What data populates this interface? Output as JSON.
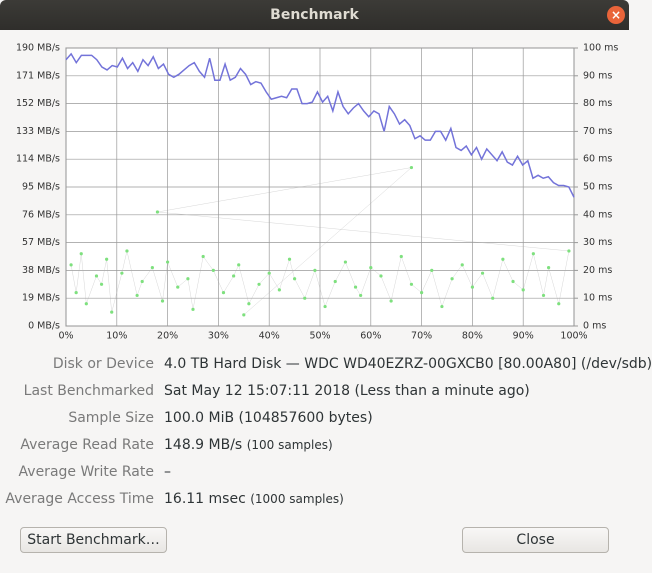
{
  "window": {
    "title": "Benchmark"
  },
  "chart_data": {
    "type": "line",
    "grid": true,
    "xlim": [
      0,
      100
    ],
    "xticks": [
      {
        "value": 0,
        "label": "0%"
      },
      {
        "value": 10,
        "label": "10%"
      },
      {
        "value": 20,
        "label": "20%"
      },
      {
        "value": 30,
        "label": "30%"
      },
      {
        "value": 40,
        "label": "40%"
      },
      {
        "value": 50,
        "label": "50%"
      },
      {
        "value": 60,
        "label": "60%"
      },
      {
        "value": 70,
        "label": "70%"
      },
      {
        "value": 80,
        "label": "80%"
      },
      {
        "value": 90,
        "label": "90%"
      },
      {
        "value": 100,
        "label": "100%"
      }
    ],
    "ylim": [
      0,
      190
    ],
    "yticks": [
      {
        "value": 0,
        "label": "0 MB/s"
      },
      {
        "value": 19,
        "label": "19 MB/s"
      },
      {
        "value": 38,
        "label": "38 MB/s"
      },
      {
        "value": 57,
        "label": "57 MB/s"
      },
      {
        "value": 76,
        "label": "76 MB/s"
      },
      {
        "value": 95,
        "label": "95 MB/s"
      },
      {
        "value": 114,
        "label": "114 MB/s"
      },
      {
        "value": 133,
        "label": "133 MB/s"
      },
      {
        "value": 152,
        "label": "152 MB/s"
      },
      {
        "value": 171,
        "label": "171 MB/s"
      },
      {
        "value": 190,
        "label": "190 MB/s"
      }
    ],
    "y2lim": [
      0,
      100
    ],
    "y2ticks": [
      {
        "value": 0,
        "label": "0 ms"
      },
      {
        "value": 10,
        "label": "10 ms"
      },
      {
        "value": 20,
        "label": "20 ms"
      },
      {
        "value": 30,
        "label": "30 ms"
      },
      {
        "value": 40,
        "label": "40 ms"
      },
      {
        "value": 50,
        "label": "50 ms"
      },
      {
        "value": 60,
        "label": "60 ms"
      },
      {
        "value": 70,
        "label": "70 ms"
      },
      {
        "value": 80,
        "label": "80 ms"
      },
      {
        "value": 90,
        "label": "90 ms"
      },
      {
        "value": 100,
        "label": "100 ms"
      }
    ],
    "series": [
      {
        "type": "line",
        "color": "#7373d9",
        "values": [
          182,
          186,
          180,
          185,
          185,
          185,
          182,
          177,
          175,
          178,
          177,
          183,
          176,
          180,
          174,
          182,
          178,
          184,
          176,
          179,
          172,
          170,
          172,
          175,
          178,
          180,
          174,
          170,
          183,
          168,
          168,
          179,
          168,
          170,
          176,
          172,
          165,
          167,
          166,
          160,
          155,
          156,
          157,
          156,
          162,
          162,
          152,
          152,
          153,
          160,
          153,
          157,
          147,
          160,
          150,
          145,
          149,
          152,
          147,
          143,
          147,
          145,
          133,
          150,
          145,
          138,
          141,
          137,
          128,
          130,
          127,
          127,
          133,
          133,
          127,
          135,
          122,
          120,
          123,
          117,
          122,
          114,
          121,
          117,
          113,
          119,
          112,
          110,
          116,
          110,
          113,
          101,
          103,
          101,
          102,
          98,
          96,
          96,
          95,
          88
        ]
      },
      {
        "type": "scatter",
        "axis": "y2",
        "color": "#7ee07e",
        "x": [
          1,
          2,
          3,
          4,
          6,
          7,
          8,
          9,
          11,
          12,
          14,
          15,
          17,
          19,
          20,
          22,
          24,
          25,
          27,
          29,
          31,
          33,
          34,
          36,
          38,
          40,
          42,
          44,
          45,
          47,
          49,
          51,
          53,
          55,
          57,
          58,
          60,
          62,
          64,
          66,
          68,
          70,
          72,
          74,
          76,
          78,
          80,
          82,
          84,
          86,
          88,
          90,
          92,
          94,
          95,
          97,
          99,
          18,
          68,
          35
        ],
        "values": [
          22,
          12,
          26,
          8,
          18,
          15,
          24,
          5,
          19,
          27,
          11,
          16,
          21,
          9,
          23,
          14,
          17,
          6,
          25,
          20,
          12,
          18,
          22,
          8,
          15,
          19,
          13,
          24,
          17,
          10,
          20,
          7,
          16,
          23,
          14,
          11,
          21,
          18,
          9,
          25,
          15,
          12,
          20,
          7,
          17,
          22,
          14,
          19,
          10,
          24,
          16,
          13,
          26,
          11,
          21,
          8,
          27,
          41,
          57,
          4
        ]
      }
    ]
  },
  "info": {
    "rows": [
      {
        "label": "Disk or Device",
        "value": "4.0 TB Hard Disk — WDC WD40EZRZ-00GXCB0 [80.00A80] (/dev/sdb)"
      },
      {
        "label": "Last Benchmarked",
        "value": "Sat May 12 15:07:11 2018 (Less than a minute ago)"
      },
      {
        "label": "Sample Size",
        "value": "100.0 MiB (104857600 bytes)"
      },
      {
        "label": "Average Read Rate",
        "value": "148.9 MB/s",
        "note": "(100 samples)"
      },
      {
        "label": "Average Write Rate",
        "value": "–"
      },
      {
        "label": "Average Access Time",
        "value": "16.11 msec",
        "note": "(1000 samples)"
      }
    ]
  },
  "buttons": {
    "start": "Start Benchmark…",
    "close": "Close"
  }
}
